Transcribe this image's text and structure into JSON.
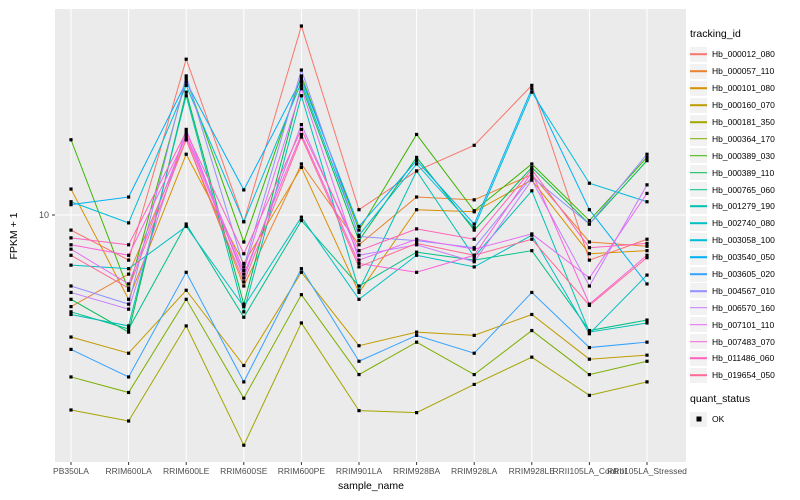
{
  "figure": {
    "panel_background": "#EBEBEB",
    "gridline_color": "#FFFFFF",
    "tick_color": "#333333",
    "tick_label_color": "#4D4D4D",
    "point_color": "#000000"
  },
  "axes": {
    "x_title": "sample_name",
    "y_title": "FPKM + 1",
    "y_tick_labels": [
      "10"
    ]
  },
  "legend": {
    "tracking_title": "tracking_id",
    "quant_title": "quant_status",
    "quant_items": [
      {
        "label": "OK",
        "symbol": "black-square"
      }
    ]
  },
  "chart_data": {
    "type": "line",
    "title": "",
    "xlabel": "sample_name",
    "ylabel": "FPKM + 1",
    "y_scale": "log10",
    "y_tick_values": [
      10
    ],
    "ylim": [
      1,
      60
    ],
    "grid": "major",
    "legend_position": "right",
    "point_shape": "filled-square",
    "quant_status": "OK",
    "categories": [
      "PB350LA",
      "RRIM600LA",
      "RRIM600LE",
      "RRIM600SE",
      "RRIM600PE",
      "RRIM901LA",
      "RRIM928BA",
      "RRIM928LA",
      "RRIM928LE",
      "RRII105LA_Control",
      "RRII105LA_Stressed"
    ],
    "series": [
      {
        "name": "Hb_000012_080",
        "color": "#F8766D",
        "values": [
          8.7,
          6.6,
          42,
          9.4,
          57,
          10.5,
          15,
          19,
          33,
          6.6,
          8.0
        ]
      },
      {
        "name": "Hb_000057_110",
        "color": "#EA8331",
        "values": [
          4.3,
          5.8,
          20,
          5.2,
          16,
          7.6,
          11.8,
          11.5,
          14.5,
          7.8,
          7.5
        ]
      },
      {
        "name": "Hb_000101_080",
        "color": "#D89000",
        "values": [
          12.7,
          4.6,
          17.5,
          6.4,
          15.5,
          4.9,
          10.5,
          10.3,
          13.8,
          7.0,
          7.2
        ]
      },
      {
        "name": "Hb_000160_070",
        "color": "#C09B00",
        "values": [
          3.25,
          2.8,
          5.0,
          2.5,
          5.9,
          3.0,
          3.4,
          3.3,
          4.0,
          2.65,
          2.75
        ]
      },
      {
        "name": "Hb_000181_350",
        "color": "#A3A500",
        "values": [
          1.66,
          1.5,
          3.6,
          1.2,
          3.7,
          1.65,
          1.62,
          2.1,
          2.7,
          1.9,
          2.15
        ]
      },
      {
        "name": "Hb_000364_170",
        "color": "#7CAE00",
        "values": [
          2.25,
          1.95,
          4.6,
          1.85,
          4.8,
          2.3,
          3.1,
          2.3,
          3.45,
          2.3,
          2.6
        ]
      },
      {
        "name": "Hb_000389_030",
        "color": "#39B600",
        "values": [
          20,
          5.0,
          35,
          7.8,
          36,
          8.7,
          21,
          10.4,
          16,
          9.5,
          17.0
        ]
      },
      {
        "name": "Hb_000389_110",
        "color": "#00BB4E",
        "values": [
          4.6,
          3.4,
          31,
          4.4,
          33,
          7.9,
          17,
          8.7,
          15.5,
          9.2,
          16.5
        ]
      },
      {
        "name": "Hb_000765_060",
        "color": "#00C087",
        "values": [
          4.1,
          3.5,
          9.2,
          3.9,
          9.5,
          5.2,
          7.1,
          6.6,
          7.2,
          3.45,
          3.8
        ]
      },
      {
        "name": "Hb_001279_190",
        "color": "#00C0B2",
        "values": [
          4.0,
          3.6,
          30,
          4.1,
          30,
          5.0,
          15,
          6.8,
          12.5,
          3.4,
          3.7
        ]
      },
      {
        "name": "Hb_002740_080",
        "color": "#00BFC4",
        "values": [
          6.3,
          6.1,
          9.0,
          4.3,
          9.8,
          4.6,
          6.9,
          6.2,
          8.3,
          3.35,
          5.75
        ]
      },
      {
        "name": "Hb_003058_100",
        "color": "#00BCD8",
        "values": [
          11.3,
          9.3,
          33,
          9.4,
          34,
          8.3,
          16,
          8.9,
          31,
          13.4,
          11.3
        ]
      },
      {
        "name": "Hb_003540_050",
        "color": "#00B0F6",
        "values": [
          11.0,
          11.8,
          34,
          12.6,
          35,
          9.0,
          16.5,
          9.2,
          32,
          10.5,
          5.3
        ]
      },
      {
        "name": "Hb_003605_020",
        "color": "#35A2FF",
        "values": [
          2.9,
          2.25,
          5.9,
          2.15,
          6.1,
          2.6,
          3.3,
          2.8,
          4.9,
          2.95,
          3.1
        ]
      },
      {
        "name": "Hb_004567_010",
        "color": "#9590FF",
        "values": [
          5.2,
          4.4,
          36,
          6.2,
          38,
          8.2,
          7.9,
          7.4,
          14.2,
          9.2,
          17.5
        ]
      },
      {
        "name": "Hb_006570_160",
        "color": "#C77CFF",
        "values": [
          4.9,
          4.2,
          22,
          5.6,
          23,
          6.9,
          7.6,
          6.5,
          13.8,
          5.2,
          13.2
        ]
      },
      {
        "name": "Hb_007101_110",
        "color": "#E76BF3",
        "values": [
          7.3,
          5.3,
          21,
          6.0,
          32,
          6.6,
          8.0,
          7.3,
          8.4,
          5.6,
          12.2
        ]
      },
      {
        "name": "Hb_007483_070",
        "color": "#FA62DB",
        "values": [
          7.6,
          6.9,
          20.5,
          5.8,
          21,
          6.4,
          5.9,
          6.9,
          14.8,
          4.4,
          6.9
        ]
      },
      {
        "name": "Hb_011486_060",
        "color": "#FF62BC",
        "values": [
          8.1,
          7.6,
          21.5,
          7.0,
          22,
          7.2,
          8.8,
          8.0,
          15.2,
          7.4,
          7.7
        ]
      },
      {
        "name": "Hb_019654_050",
        "color": "#FF6A98",
        "values": [
          6.9,
          5.1,
          20,
          5.4,
          20.5,
          6.2,
          7.7,
          6.9,
          8.0,
          4.35,
          6.75
        ]
      }
    ]
  }
}
